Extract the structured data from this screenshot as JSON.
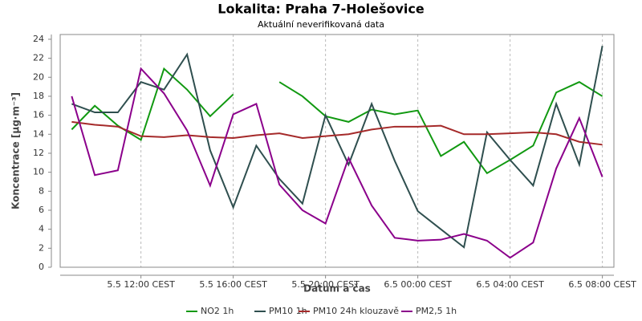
{
  "chart_data": {
    "type": "line",
    "title": "Lokalita: Praha 7-Holešovice",
    "subtitle": "Aktuální neverifikovaná data",
    "y_label": "Koncentrace [µg·m⁻³]",
    "x_label": "Datum a čas",
    "categories": [
      null,
      null,
      null,
      "5.5 12:00 CEST",
      null,
      null,
      null,
      "5.5 16:00 CEST",
      null,
      null,
      null,
      "5.5 20:00 CEST",
      null,
      null,
      null,
      "6.5 00:00 CEST",
      null,
      null,
      null,
      "6.5 04:00 CEST",
      null,
      null,
      null,
      "6.5 08:00 CEST"
    ],
    "ylim": [
      0,
      24.5
    ],
    "yticks": [
      0,
      2,
      4,
      6,
      8,
      10,
      12,
      14,
      16,
      18,
      20,
      22,
      24
    ],
    "grid": true,
    "legend": "bottom",
    "series": [
      {
        "name": "NO2 1h",
        "color": "#119911",
        "values": [
          14.5,
          17.0,
          14.9,
          13.4,
          20.9,
          18.7,
          15.9,
          18.2,
          null,
          19.5,
          18.0,
          15.9,
          15.3,
          16.6,
          16.1,
          16.5,
          11.7,
          13.2,
          9.9,
          11.3,
          12.8,
          18.4,
          19.5,
          18.0
        ]
      },
      {
        "name": "PM10 1h",
        "color": "#2f4f4f",
        "values": [
          17.2,
          16.3,
          16.3,
          19.5,
          18.7,
          22.4,
          12.3,
          6.3,
          12.8,
          9.3,
          6.7,
          16.0,
          10.8,
          17.2,
          11.2,
          5.9,
          4.0,
          2.1,
          14.2,
          11.3,
          8.6,
          17.2,
          10.8,
          23.3
        ]
      },
      {
        "name": "PM10 24h klouzavě",
        "color": "#a52a2a",
        "values": [
          15.3,
          15.0,
          14.8,
          13.8,
          13.7,
          13.9,
          13.7,
          13.6,
          13.9,
          14.1,
          13.6,
          13.8,
          14.0,
          14.5,
          14.8,
          14.8,
          14.9,
          14.0,
          14.0,
          14.1,
          14.2,
          14.0,
          13.2,
          12.9
        ]
      },
      {
        "name": "PM2,5 1h",
        "color": "#8b008b",
        "values": [
          18.0,
          9.7,
          10.2,
          20.9,
          18.3,
          14.4,
          8.6,
          16.1,
          17.2,
          8.7,
          6.0,
          4.6,
          11.5,
          6.5,
          3.1,
          2.8,
          2.9,
          3.5,
          2.8,
          1.0,
          2.6,
          10.4,
          15.7,
          9.5
        ]
      }
    ]
  }
}
